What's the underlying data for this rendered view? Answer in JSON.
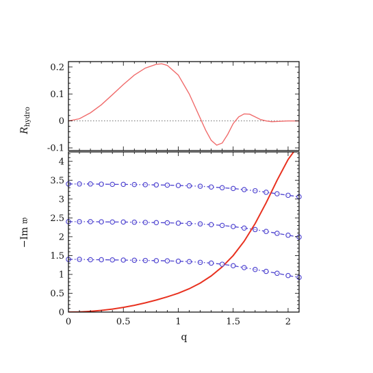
{
  "chart_data": [
    {
      "type": "line",
      "panel": "top",
      "ylabel": "R",
      "ylabel_sub": "hydro",
      "xlim": [
        0,
        2.1
      ],
      "ylim": [
        -0.11,
        0.22
      ],
      "yticks": [
        0.2,
        0.1,
        0,
        -0.1
      ],
      "ytick_labels": [
        "0.2",
        "0.1",
        "0",
        "-0.1"
      ],
      "reference_line": {
        "y": 0,
        "style": "dotted"
      },
      "series": [
        {
          "color": "#f06a6a",
          "x": [
            0,
            0.1,
            0.2,
            0.3,
            0.4,
            0.5,
            0.6,
            0.7,
            0.8,
            0.85,
            0.9,
            1.0,
            1.1,
            1.15,
            1.2,
            1.25,
            1.3,
            1.35,
            1.4,
            1.45,
            1.5,
            1.55,
            1.6,
            1.65,
            1.7,
            1.75,
            1.8,
            1.85,
            1.9,
            2.0,
            2.1
          ],
          "y": [
            0,
            0.008,
            0.03,
            0.06,
            0.097,
            0.135,
            0.17,
            0.196,
            0.21,
            0.212,
            0.206,
            0.17,
            0.1,
            0.055,
            0.01,
            -0.035,
            -0.072,
            -0.09,
            -0.082,
            -0.05,
            -0.01,
            0.015,
            0.026,
            0.025,
            0.015,
            0.005,
            0.0,
            -0.003,
            -0.002,
            0,
            0
          ]
        }
      ]
    },
    {
      "type": "line",
      "panel": "bottom",
      "xlabel": "q",
      "ylabel": "−Im 𝔴",
      "xlim": [
        0,
        2.1
      ],
      "ylim": [
        0,
        4.25
      ],
      "xticks": [
        0,
        0.5,
        1,
        1.5,
        2
      ],
      "xtick_labels": [
        "0",
        "0.5",
        "1",
        "1.5",
        "2"
      ],
      "yticks": [
        0,
        0.5,
        1,
        1.5,
        2,
        2.5,
        3,
        3.5,
        4
      ],
      "ytick_labels": [
        "0",
        "0.5",
        "1",
        "1.5",
        "2",
        "2.5",
        "3",
        "3.5",
        "4"
      ],
      "series": [
        {
          "style": "solid",
          "color": "#e8311f",
          "x": [
            0,
            0.1,
            0.2,
            0.3,
            0.4,
            0.5,
            0.6,
            0.7,
            0.8,
            0.9,
            1.0,
            1.1,
            1.2,
            1.3,
            1.4,
            1.5,
            1.6,
            1.7,
            1.8,
            1.9,
            2.0,
            2.05
          ],
          "y": [
            0,
            0.005,
            0.02,
            0.045,
            0.08,
            0.125,
            0.18,
            0.245,
            0.32,
            0.405,
            0.5,
            0.62,
            0.77,
            0.96,
            1.2,
            1.5,
            1.88,
            2.35,
            2.9,
            3.5,
            4.05,
            4.25
          ]
        },
        {
          "style": "dash-dot-circles",
          "color": "#4a3fcf",
          "x": [
            0,
            0.1,
            0.2,
            0.3,
            0.4,
            0.5,
            0.6,
            0.7,
            0.8,
            0.9,
            1.0,
            1.1,
            1.2,
            1.3,
            1.4,
            1.5,
            1.6,
            1.7,
            1.8,
            1.9,
            2.0,
            2.1
          ],
          "y": [
            1.4,
            1.4,
            1.39,
            1.39,
            1.385,
            1.38,
            1.375,
            1.37,
            1.365,
            1.36,
            1.35,
            1.34,
            1.32,
            1.3,
            1.27,
            1.23,
            1.18,
            1.13,
            1.08,
            1.03,
            0.97,
            0.92
          ]
        },
        {
          "style": "dash-dot-circles",
          "color": "#4a3fcf",
          "x": [
            0,
            0.1,
            0.2,
            0.3,
            0.4,
            0.5,
            0.6,
            0.7,
            0.8,
            0.9,
            1.0,
            1.1,
            1.2,
            1.3,
            1.4,
            1.5,
            1.6,
            1.7,
            1.8,
            1.9,
            2.0,
            2.1
          ],
          "y": [
            2.4,
            2.4,
            2.4,
            2.395,
            2.39,
            2.39,
            2.385,
            2.38,
            2.375,
            2.37,
            2.36,
            2.35,
            2.34,
            2.32,
            2.3,
            2.27,
            2.23,
            2.19,
            2.14,
            2.09,
            2.04,
            1.99
          ]
        },
        {
          "style": "dash-dot-circles",
          "color": "#4a3fcf",
          "x": [
            0,
            0.1,
            0.2,
            0.3,
            0.4,
            0.5,
            0.6,
            0.7,
            0.8,
            0.9,
            1.0,
            1.1,
            1.2,
            1.3,
            1.4,
            1.5,
            1.6,
            1.7,
            1.8,
            1.9,
            2.0,
            2.1
          ],
          "y": [
            3.4,
            3.4,
            3.4,
            3.395,
            3.39,
            3.39,
            3.385,
            3.38,
            3.375,
            3.37,
            3.36,
            3.35,
            3.34,
            3.32,
            3.3,
            3.28,
            3.25,
            3.22,
            3.18,
            3.14,
            3.1,
            3.06
          ]
        }
      ]
    }
  ]
}
